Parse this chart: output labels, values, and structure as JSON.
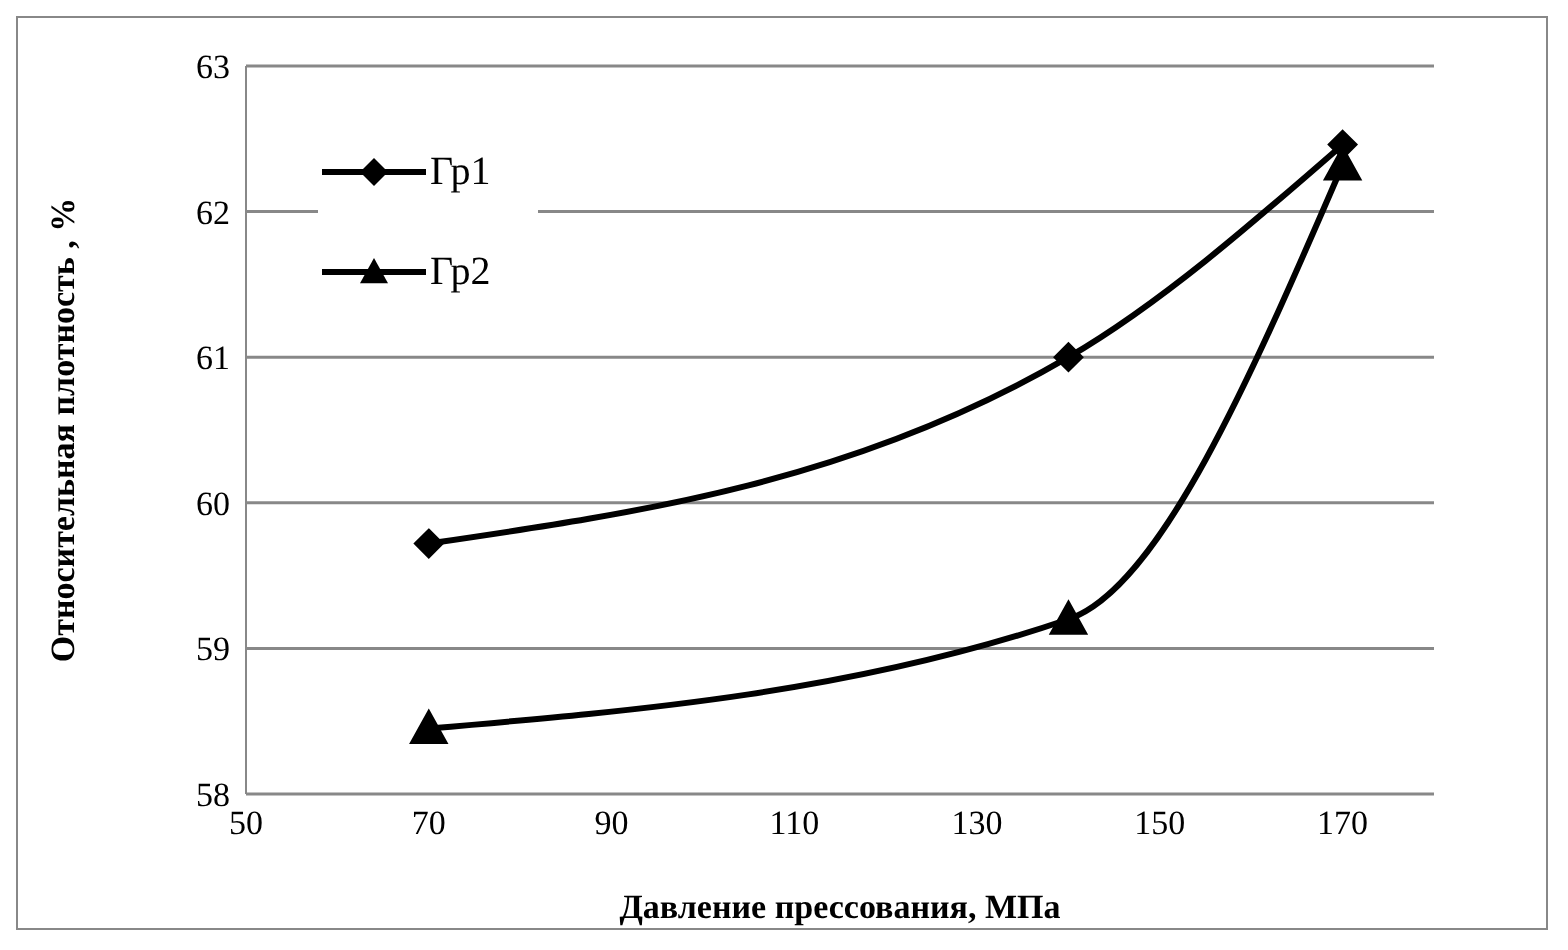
{
  "chart_data": {
    "type": "line",
    "xlabel": "Давление прессования, МПа",
    "ylabel": "Относительная плотность , %",
    "x": [
      70,
      140,
      170
    ],
    "series": [
      {
        "name": "Гр1",
        "color": "#000000",
        "values": [
          59.72,
          61.0,
          62.46
        ],
        "marker": "diamond"
      },
      {
        "name": "Гр2",
        "color": "#000000",
        "values": [
          58.45,
          59.2,
          62.32
        ],
        "marker": "triangle"
      }
    ],
    "xlim": [
      50,
      180
    ],
    "xticks": [
      50,
      70,
      90,
      110,
      130,
      150,
      170
    ],
    "ylim": [
      58,
      63
    ],
    "yticks": [
      58,
      59,
      60,
      61,
      62,
      63
    ],
    "grid": "y",
    "legend": "top left",
    "line_style": "solid"
  }
}
